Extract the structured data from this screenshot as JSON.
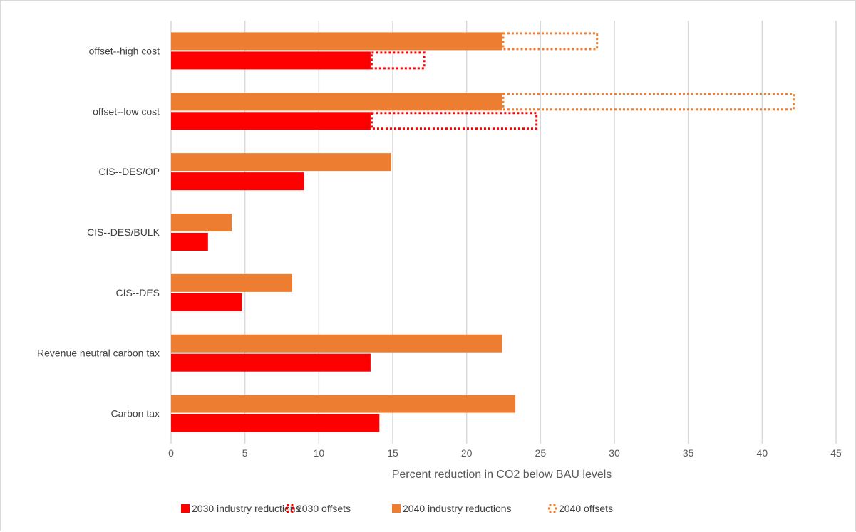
{
  "chart_data": {
    "type": "bar",
    "orientation": "horizontal",
    "stacked": true,
    "title": "",
    "xlabel": "Percent reduction in CO2 below BAU levels",
    "ylabel": "",
    "xlim": [
      0,
      45
    ],
    "x_ticks": [
      0,
      5,
      10,
      15,
      20,
      25,
      30,
      35,
      40,
      45
    ],
    "grid": "vertical",
    "legend_position": "bottom",
    "categories": [
      "offset--high cost",
      "offset--low cost",
      "CIS--DES/OP",
      "CIS--DES/BULK",
      "CIS--DES",
      "Revenue neutral carbon tax",
      "Carbon tax"
    ],
    "series": [
      {
        "name": "2030 industry reductions",
        "year": "2030",
        "kind": "industry",
        "style": "solid",
        "color": "#ff0000",
        "values": [
          13.5,
          13.5,
          9.0,
          2.5,
          4.8,
          13.5,
          14.1
        ]
      },
      {
        "name": "2030 offsets",
        "year": "2030",
        "kind": "offset",
        "style": "dotted-outline",
        "color": "#ff0000",
        "values": [
          3.7,
          11.3,
          0,
          0,
          0,
          0,
          0
        ]
      },
      {
        "name": "2040 industry reductions",
        "year": "2040",
        "kind": "industry",
        "style": "solid",
        "color": "#ed7d31",
        "values": [
          22.4,
          22.4,
          14.9,
          4.1,
          8.2,
          22.4,
          23.3
        ]
      },
      {
        "name": "2040 offsets",
        "year": "2040",
        "kind": "offset",
        "style": "dotted-outline",
        "color": "#ed7d31",
        "values": [
          6.5,
          19.8,
          0,
          0,
          0,
          0,
          0
        ]
      }
    ]
  }
}
